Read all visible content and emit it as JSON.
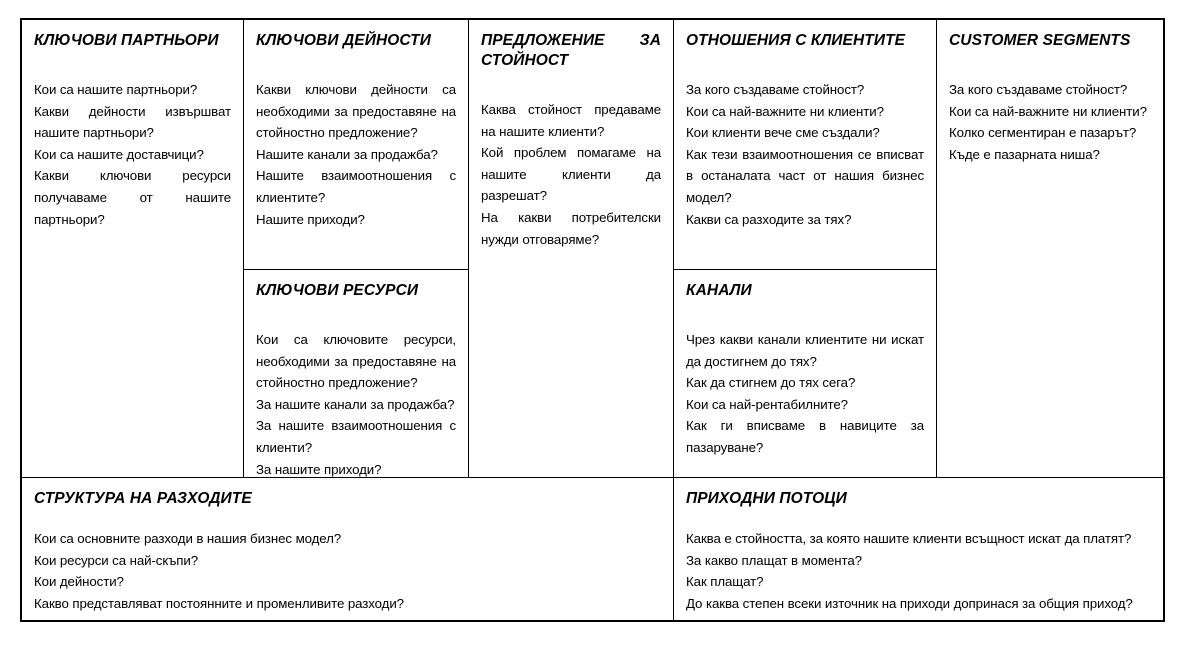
{
  "document": {
    "type": "business-model-canvas"
  },
  "blocks": {
    "key_partners": {
      "title": "КЛЮЧОВИ ПАРТНЬОРИ",
      "questions": [
        "Кои са нашите партньори?",
        "Какви дейности извършват нашите партньори?",
        "Кои са нашите доставчици?",
        "Какви ключови ресурси получаваме от нашите партньори?"
      ]
    },
    "key_activities": {
      "title": "КЛЮЧОВИ ДЕЙНОСТИ",
      "questions": [
        "Какви ключови дейности са необходими за предоставяне на стойностно предложение?",
        "Нашите канали за продажба?",
        "Нашите взаимоотношения с клиентите?",
        "Нашите приходи?"
      ]
    },
    "key_resources": {
      "title": "КЛЮЧОВИ РЕСУРСИ",
      "questions": [
        "Кои са ключовите ресурси, необходими за предоставяне на стойностно предложение?",
        "За нашите канали за продажба?",
        "За нашите взаимоотношения с клиенти?",
        "За нашите приходи?"
      ]
    },
    "value_proposition": {
      "title": "ПРЕДЛОЖЕНИЕ ЗА СТОЙНОСТ",
      "questions": [
        "Каква стойност предаваме на нашите клиенти?",
        "Кой проблем помагаме на нашите клиенти да разрешат?",
        "На какви потребителски нужди отговаряме?"
      ]
    },
    "customer_relationships": {
      "title": "ОТНОШЕНИЯ С КЛИЕНТИТЕ",
      "questions": [
        "За кого създаваме стойност?",
        "Кои са най-важните ни клиенти?",
        "Кои клиенти вече сме създали?",
        "Как тези взаимоотношения се вписват в останалата част от нашия бизнес модел?",
        "Какви са разходите за тях?"
      ]
    },
    "channels": {
      "title": "КАНАЛИ",
      "questions": [
        "Чрез какви канали клиентите ни искат да достигнем до тях?",
        "Как да стигнем до тях сега?",
        "Кои са най-рентабилните?",
        "Как ги вписваме в навиците за пазаруване?"
      ]
    },
    "customer_segments": {
      "title": "CUSTOMER SEGMENTS",
      "questions": [
        "За кого създаваме стойност?",
        "Кои са най-важните ни клиенти?",
        "Колко сегментиран е пазарът?",
        "Къде е пазарната ниша?"
      ]
    },
    "cost_structure": {
      "title": "СТРУКТУРА НА РАЗХОДИТЕ",
      "questions": [
        "Кои са основните разходи в нашия бизнес модел?",
        "Кои ресурси са най-скъпи?",
        "Кои дейности?",
        "Какво представляват постоянните и променливите разходи?"
      ]
    },
    "revenue_streams": {
      "title": "ПРИХОДНИ ПОТОЦИ",
      "questions": [
        "Каква е стойността, за която нашите клиенти всъщност искат да платят?",
        "За какво плащат в момента?",
        "Как плащат?",
        "До каква степен всеки източник на приходи допринася за общия приход?"
      ]
    }
  },
  "colors": {
    "border": "#000000",
    "text": "#000000",
    "background": "#ffffff"
  }
}
